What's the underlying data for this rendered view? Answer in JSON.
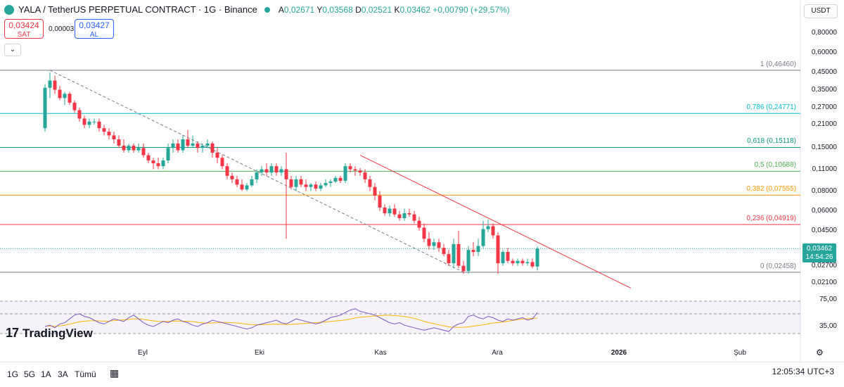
{
  "header": {
    "title": "YALA / TetherUS PERPETUAL CONTRACT · 1G · Binance",
    "ohlc": {
      "a_key": "A",
      "a": "0,02671",
      "y_key": "Y",
      "y": "0,03568",
      "d_key": "D",
      "d": "0,02521",
      "k_key": "K",
      "k": "0,03462",
      "change": "+0,00790 (+29,57%)"
    }
  },
  "trade": {
    "sell_price": "0,03424",
    "sell_label": "SAT",
    "spread": "0,00003",
    "buy_price": "0,03427",
    "buy_label": "AL",
    "collapse_icon": "⌄"
  },
  "currency": "USDT",
  "y_axis_labels": [
    "0,80000",
    "0,60000",
    "0,45000",
    "0,35000",
    "0,27000",
    "0,21000",
    "0,15000",
    "0,11000",
    "0,08000",
    "0,06000",
    "0,04500",
    "0,03462",
    "0,02700",
    "0,02100"
  ],
  "current_price": {
    "value": "0,03462",
    "countdown": "14:54:26"
  },
  "fib_levels": [
    {
      "label": "1 (0,46460)",
      "value": 0.4646,
      "color": "#787b86"
    },
    {
      "label": "0,786 (0,24771)",
      "value": 0.24771,
      "color": "#00bcd4"
    },
    {
      "label": "0,618 (0,15118)",
      "value": 0.15118,
      "color": "#089981"
    },
    {
      "label": "0,5 (0,10688)",
      "value": 0.10688,
      "color": "#4caf50"
    },
    {
      "label": "0,382 (0,07555)",
      "value": 0.07555,
      "color": "#ff9800"
    },
    {
      "label": "0,236 (0,04919)",
      "value": 0.04919,
      "color": "#f23645"
    },
    {
      "label": "0 (0,02458)",
      "value": 0.02458,
      "color": "#787b86"
    }
  ],
  "rsi": {
    "upper": "75,00",
    "lower": "35,00"
  },
  "x_axis_labels": [
    {
      "text": "Eyl",
      "bold": false
    },
    {
      "text": "Eki",
      "bold": false
    },
    {
      "text": "Kas",
      "bold": false
    },
    {
      "text": "Ara",
      "bold": false
    },
    {
      "text": "2026",
      "bold": true
    },
    {
      "text": "Şub",
      "bold": false
    }
  ],
  "brand": "TradingView",
  "timeframes": [
    "1G",
    "5G",
    "1A",
    "3A",
    "Tümü"
  ],
  "clock": "12:05:34 UTC+3",
  "colors": {
    "up": "#26a69a",
    "down": "#f23645",
    "rsi": "#7e57c2",
    "rsi_ma": "#ffb300",
    "trend": "#f23645"
  },
  "icons": {
    "calendar": "calendar-icon",
    "settings": "gear-icon"
  },
  "chart_data": {
    "type": "candlestick",
    "title": "YALA / TetherUS PERPETUAL CONTRACT · 1G · Binance",
    "y_scale": "log",
    "ylim": [
      0.019,
      1.0
    ],
    "candles": [
      [
        0.2,
        0.38,
        0.19,
        0.36
      ],
      [
        0.36,
        0.45,
        0.31,
        0.4
      ],
      [
        0.4,
        0.43,
        0.33,
        0.35
      ],
      [
        0.35,
        0.37,
        0.3,
        0.31
      ],
      [
        0.31,
        0.34,
        0.28,
        0.33
      ],
      [
        0.33,
        0.34,
        0.28,
        0.29
      ],
      [
        0.29,
        0.3,
        0.25,
        0.26
      ],
      [
        0.26,
        0.27,
        0.22,
        0.23
      ],
      [
        0.23,
        0.24,
        0.2,
        0.21
      ],
      [
        0.21,
        0.23,
        0.2,
        0.22
      ],
      [
        0.22,
        0.23,
        0.21,
        0.22
      ],
      [
        0.22,
        0.23,
        0.19,
        0.2
      ],
      [
        0.2,
        0.21,
        0.18,
        0.19
      ],
      [
        0.19,
        0.2,
        0.17,
        0.18
      ],
      [
        0.18,
        0.19,
        0.16,
        0.17
      ],
      [
        0.17,
        0.18,
        0.15,
        0.155
      ],
      [
        0.155,
        0.17,
        0.14,
        0.145
      ],
      [
        0.145,
        0.16,
        0.14,
        0.155
      ],
      [
        0.155,
        0.16,
        0.14,
        0.145
      ],
      [
        0.145,
        0.16,
        0.14,
        0.15
      ],
      [
        0.15,
        0.16,
        0.13,
        0.135
      ],
      [
        0.135,
        0.14,
        0.12,
        0.125
      ],
      [
        0.125,
        0.13,
        0.11,
        0.12
      ],
      [
        0.12,
        0.13,
        0.11,
        0.115
      ],
      [
        0.115,
        0.13,
        0.11,
        0.125
      ],
      [
        0.125,
        0.16,
        0.12,
        0.15
      ],
      [
        0.15,
        0.17,
        0.14,
        0.16
      ],
      [
        0.16,
        0.17,
        0.14,
        0.145
      ],
      [
        0.145,
        0.18,
        0.14,
        0.17
      ],
      [
        0.17,
        0.195,
        0.15,
        0.155
      ],
      [
        0.155,
        0.18,
        0.15,
        0.16
      ],
      [
        0.16,
        0.165,
        0.14,
        0.15
      ],
      [
        0.15,
        0.16,
        0.14,
        0.155
      ],
      [
        0.155,
        0.17,
        0.15,
        0.16
      ],
      [
        0.16,
        0.165,
        0.13,
        0.14
      ],
      [
        0.14,
        0.15,
        0.12,
        0.13
      ],
      [
        0.13,
        0.135,
        0.11,
        0.115
      ],
      [
        0.115,
        0.12,
        0.095,
        0.1
      ],
      [
        0.1,
        0.105,
        0.09,
        0.095
      ],
      [
        0.095,
        0.1,
        0.085,
        0.088
      ],
      [
        0.088,
        0.095,
        0.08,
        0.082
      ],
      [
        0.082,
        0.09,
        0.08,
        0.087
      ],
      [
        0.087,
        0.1,
        0.085,
        0.095
      ],
      [
        0.095,
        0.11,
        0.09,
        0.105
      ],
      [
        0.105,
        0.115,
        0.1,
        0.11
      ],
      [
        0.11,
        0.12,
        0.1,
        0.105
      ],
      [
        0.105,
        0.12,
        0.1,
        0.115
      ],
      [
        0.115,
        0.12,
        0.1,
        0.105
      ],
      [
        0.105,
        0.115,
        0.1,
        0.11
      ],
      [
        0.11,
        0.14,
        0.04,
        0.095
      ],
      [
        0.095,
        0.1,
        0.082,
        0.085
      ],
      [
        0.085,
        0.1,
        0.08,
        0.095
      ],
      [
        0.095,
        0.1,
        0.085,
        0.088
      ],
      [
        0.088,
        0.095,
        0.08,
        0.085
      ],
      [
        0.085,
        0.09,
        0.08,
        0.088
      ],
      [
        0.088,
        0.092,
        0.08,
        0.083
      ],
      [
        0.083,
        0.09,
        0.08,
        0.087
      ],
      [
        0.087,
        0.095,
        0.085,
        0.09
      ],
      [
        0.09,
        0.095,
        0.085,
        0.092
      ],
      [
        0.092,
        0.1,
        0.09,
        0.097
      ],
      [
        0.097,
        0.1,
        0.09,
        0.093
      ],
      [
        0.093,
        0.12,
        0.09,
        0.115
      ],
      [
        0.115,
        0.12,
        0.105,
        0.11
      ],
      [
        0.11,
        0.115,
        0.1,
        0.108
      ],
      [
        0.108,
        0.112,
        0.1,
        0.105
      ],
      [
        0.105,
        0.11,
        0.09,
        0.095
      ],
      [
        0.095,
        0.1,
        0.08,
        0.085
      ],
      [
        0.085,
        0.09,
        0.07,
        0.075
      ],
      [
        0.075,
        0.08,
        0.06,
        0.063
      ],
      [
        0.063,
        0.066,
        0.056,
        0.058
      ],
      [
        0.058,
        0.065,
        0.055,
        0.062
      ],
      [
        0.062,
        0.066,
        0.055,
        0.057
      ],
      [
        0.057,
        0.06,
        0.052,
        0.054
      ],
      [
        0.054,
        0.062,
        0.052,
        0.058
      ],
      [
        0.058,
        0.062,
        0.055,
        0.057
      ],
      [
        0.057,
        0.06,
        0.05,
        0.052
      ],
      [
        0.052,
        0.055,
        0.045,
        0.047
      ],
      [
        0.047,
        0.05,
        0.038,
        0.04
      ],
      [
        0.04,
        0.044,
        0.034,
        0.036
      ],
      [
        0.036,
        0.04,
        0.034,
        0.038
      ],
      [
        0.038,
        0.04,
        0.033,
        0.035
      ],
      [
        0.035,
        0.037,
        0.031,
        0.032
      ],
      [
        0.032,
        0.034,
        0.027,
        0.028
      ],
      [
        0.028,
        0.04,
        0.026,
        0.037
      ],
      [
        0.037,
        0.045,
        0.026,
        0.027
      ],
      [
        0.027,
        0.029,
        0.024,
        0.025
      ],
      [
        0.025,
        0.036,
        0.024,
        0.034
      ],
      [
        0.034,
        0.038,
        0.031,
        0.033
      ],
      [
        0.033,
        0.04,
        0.031,
        0.036
      ],
      [
        0.036,
        0.052,
        0.035,
        0.046
      ],
      [
        0.046,
        0.053,
        0.044,
        0.048
      ],
      [
        0.048,
        0.05,
        0.04,
        0.042
      ],
      [
        0.042,
        0.044,
        0.024,
        0.028
      ],
      [
        0.028,
        0.034,
        0.027,
        0.033
      ],
      [
        0.033,
        0.035,
        0.028,
        0.029
      ],
      [
        0.029,
        0.03,
        0.027,
        0.028
      ],
      [
        0.028,
        0.03,
        0.027,
        0.029
      ],
      [
        0.029,
        0.03,
        0.027,
        0.028
      ],
      [
        0.028,
        0.03,
        0.027,
        0.0285
      ],
      [
        0.0285,
        0.03,
        0.026,
        0.0267
      ],
      [
        0.0267,
        0.0357,
        0.0252,
        0.03462
      ]
    ],
    "fib_retracement": [
      0.4646,
      0.24771,
      0.15118,
      0.10688,
      0.07555,
      0.04919,
      0.02458
    ],
    "rsi": [
      40,
      42,
      38,
      44,
      46,
      52,
      58,
      60,
      56,
      54,
      50,
      46,
      44,
      48,
      52,
      50,
      48,
      54,
      58,
      52,
      46,
      42,
      40,
      44,
      48,
      46,
      50,
      52,
      48,
      46,
      42,
      40,
      44,
      46,
      50,
      48,
      46,
      44,
      42,
      40,
      38,
      36,
      38,
      42,
      44,
      46,
      48,
      50,
      46,
      44,
      48,
      52,
      50,
      48,
      46,
      44,
      46,
      50,
      54,
      56,
      58,
      62,
      66,
      68,
      64,
      62,
      60,
      58,
      54,
      50,
      46,
      44,
      46,
      42,
      40,
      38,
      36,
      34,
      36,
      38,
      36,
      34,
      32,
      40,
      44,
      46,
      56,
      58,
      54,
      52,
      56,
      54,
      50,
      48,
      52,
      50,
      52,
      54,
      50,
      52,
      62
    ],
    "xlabel": "",
    "ylabel": ""
  }
}
